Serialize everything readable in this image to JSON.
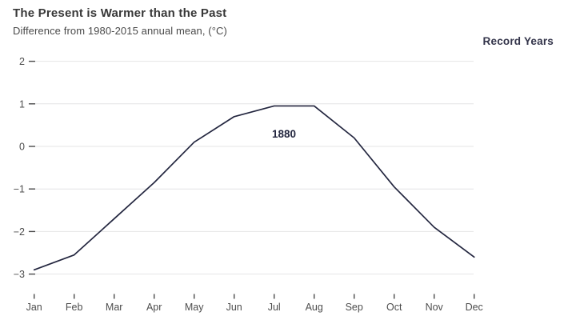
{
  "header": {
    "title": "The Present is Warmer than the Past",
    "subtitle": "Difference from 1980-2015 annual mean, (°C)"
  },
  "legend": {
    "title": "Record Years"
  },
  "colors": {
    "background": "#ffffff",
    "line": "#23263f",
    "grid": "#e4e4e6",
    "tick": "#4a4a4a",
    "axis_text": "#4d4d4d",
    "title_text": "#383838",
    "subtitle_text": "#4a4a4a",
    "legend_text": "#33344a"
  },
  "chart_data": {
    "type": "line",
    "title": "The Present is Warmer than the Past",
    "subtitle": "Difference from 1980-2015 annual mean, (°C)",
    "categories": [
      "Jan",
      "Feb",
      "Mar",
      "Apr",
      "May",
      "Jun",
      "Jul",
      "Aug",
      "Sep",
      "Oct",
      "Nov",
      "Dec"
    ],
    "xlabel": "",
    "ylabel": "Difference from 1980-2015 annual mean (°C)",
    "ylim": [
      -3,
      2
    ],
    "yticks": [
      {
        "value": 2,
        "label": "2"
      },
      {
        "value": 1,
        "label": "1"
      },
      {
        "value": 0,
        "label": "0"
      },
      {
        "value": -1,
        "label": "−1"
      },
      {
        "value": -2,
        "label": "−2"
      },
      {
        "value": -3,
        "label": "−3"
      }
    ],
    "grid": "horizontal",
    "legend_title": "Record Years",
    "series": [
      {
        "name": "1880",
        "color": "#23263f",
        "inline_label": "1880",
        "values": [
          -2.9,
          -2.55,
          -1.7,
          -0.85,
          0.1,
          0.7,
          0.95,
          0.95,
          0.2,
          -0.95,
          -1.9,
          -2.6
        ]
      }
    ]
  }
}
